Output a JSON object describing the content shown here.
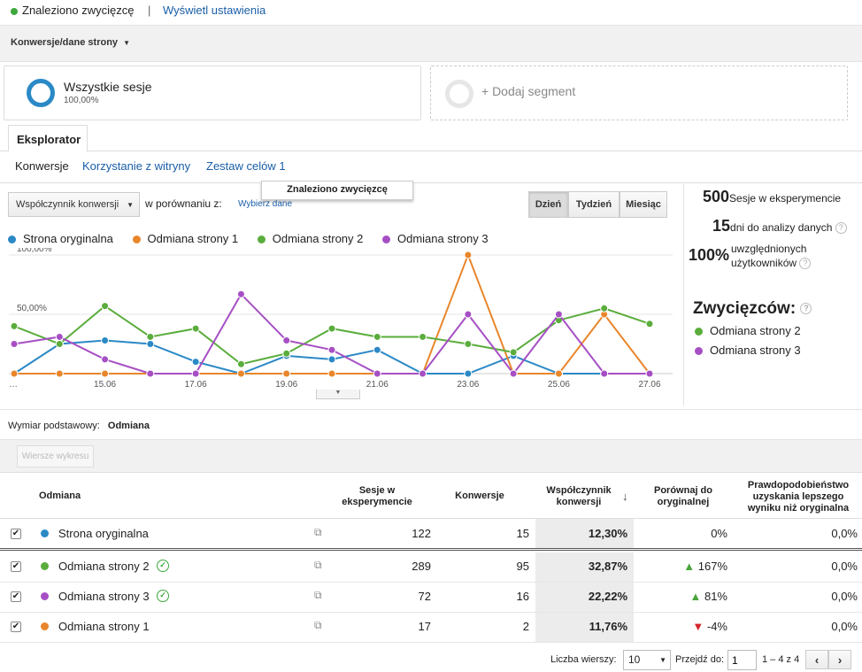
{
  "top": {
    "status": "Znaleziono zwycięzcę",
    "separator": "|",
    "settings_link": "Wyświetl ustawienia"
  },
  "segment_bar": {
    "label": "Konwersje/dane strony"
  },
  "segments": [
    {
      "name": "Wszystkie sesje",
      "value": "100,00%"
    },
    {
      "add_label": "+ Dodaj segment"
    }
  ],
  "tabs": {
    "explorer": "Eksplorator"
  },
  "subnav": [
    "Konwersje",
    "Korzystanie z witryny",
    "Zestaw celów 1"
  ],
  "controls": {
    "metric_select": "Współczynnik konwersji",
    "compare_label": "w porównaniu z:",
    "choose_data": "Wybierz dane",
    "tooltip": "Znaleziono zwycięzcę",
    "periods": [
      "Dzień",
      "Tydzień",
      "Miesiąc"
    ]
  },
  "stats": {
    "sessions_num": "500",
    "sessions_label": "Sesje w eksperymencie",
    "days_num": "15",
    "days_label": "dni do analizy danych",
    "users_num": "100%",
    "users_label_1": "uwzględnionych",
    "users_label_2": "użytkowników",
    "winners_title": "Zwycięzców:",
    "winners": [
      {
        "name": "Odmiana strony 2",
        "color": "#5aad3c"
      },
      {
        "name": "Odmiana strony 3",
        "color": "#a64fc4"
      }
    ]
  },
  "chart_data": {
    "type": "line",
    "x": [
      "…",
      "14.06",
      "15.06",
      "16.06",
      "17.06",
      "18.06",
      "19.06",
      "20.06",
      "21.06",
      "22.06",
      "23.06",
      "24.06",
      "25.06",
      "26.06",
      "27.06"
    ],
    "tick_labels": [
      "…",
      "15.06",
      "17.06",
      "19.06",
      "21.06",
      "23.06",
      "25.06",
      "27.06"
    ],
    "ytick_labels": [
      "100,00%",
      "50,00%"
    ],
    "ylim": [
      0,
      100
    ],
    "series": [
      {
        "name": "Strona oryginalna",
        "color": "#2b89c6",
        "values": [
          0,
          25,
          28,
          25,
          10,
          0,
          15,
          12,
          20,
          0,
          0,
          15,
          0,
          0,
          0
        ]
      },
      {
        "name": "Odmiana strony 1",
        "color": "#e8862b",
        "values": [
          0,
          0,
          0,
          0,
          0,
          0,
          0,
          0,
          0,
          0,
          100,
          0,
          0,
          50,
          0
        ]
      },
      {
        "name": "Odmiana strony 2",
        "color": "#5aad3c",
        "values": [
          40,
          25,
          57,
          31,
          38,
          8,
          17,
          38,
          31,
          31,
          25,
          18,
          45,
          55,
          42
        ]
      },
      {
        "name": "Odmiana strony 3",
        "color": "#a64fc4",
        "values": [
          25,
          31,
          12,
          0,
          0,
          67,
          28,
          20,
          0,
          0,
          50,
          0,
          50,
          0,
          0
        ]
      }
    ]
  },
  "dimension": {
    "label": "Wymiar podstawowy:",
    "value": "Odmiana"
  },
  "chart_rows_btn": "Wiersze wykresu",
  "table": {
    "headers": {
      "variant": "Odmiana",
      "sessions": [
        "Sesje w",
        "eksperymencie"
      ],
      "conversions": "Konwersje",
      "rate": [
        "Współczynnik",
        "konwersji"
      ],
      "compare": [
        "Porównaj do",
        "oryginalnej"
      ],
      "prob": [
        "Prawdopodobieństwo",
        "uzyskania lepszego",
        "wyniku niż oryginalna"
      ]
    },
    "rows": [
      {
        "name": "Strona oryginalna",
        "color": "#2b89c6",
        "sessions": "122",
        "conversions": "15",
        "rate": "12,30%",
        "compare": "0%",
        "trend": "",
        "prob": "0,0%",
        "winner": false
      },
      {
        "name": "Odmiana strony 2",
        "color": "#5aad3c",
        "sessions": "289",
        "conversions": "95",
        "rate": "32,87%",
        "compare": "167%",
        "trend": "up",
        "prob": "0,0%",
        "winner": true
      },
      {
        "name": "Odmiana strony 3",
        "color": "#a64fc4",
        "sessions": "72",
        "conversions": "16",
        "rate": "22,22%",
        "compare": "81%",
        "trend": "up",
        "prob": "0,0%",
        "winner": true
      },
      {
        "name": "Odmiana strony 1",
        "color": "#e8862b",
        "sessions": "17",
        "conversions": "2",
        "rate": "11,76%",
        "compare": "-4%",
        "trend": "down",
        "prob": "0,0%",
        "winner": false
      }
    ]
  },
  "pagination": {
    "rows_label": "Liczba wierszy:",
    "rows_value": "10",
    "goto_label": "Przejdź do:",
    "goto_value": "1",
    "range": "1 – 4 z 4"
  }
}
